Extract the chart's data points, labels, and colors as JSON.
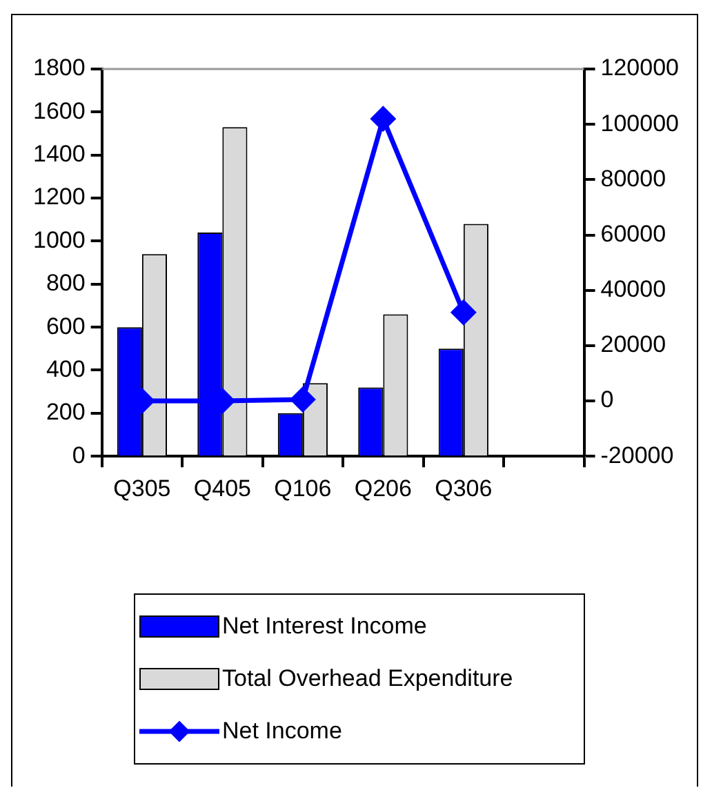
{
  "chart_data": {
    "type": "bar",
    "categories": [
      "Q305",
      "Q405",
      "Q106",
      "Q206",
      "Q306",
      null
    ],
    "series": [
      {
        "name": "Net Interest Income",
        "color": "#0000ff",
        "values": [
          600,
          1040,
          200,
          320,
          500,
          null
        ]
      },
      {
        "name": "Total Overhead Expenditure",
        "color": "#d9d9d9",
        "values": [
          940,
          1530,
          340,
          660,
          1080,
          null
        ]
      },
      {
        "name": "Net Income",
        "type": "line",
        "axis": "y2",
        "marker": "diamond",
        "color": "#0000ff",
        "values": [
          0,
          0,
          500,
          102000,
          32000,
          null
        ]
      }
    ],
    "ylim": [
      0,
      1800
    ],
    "yticks": [
      0,
      200,
      400,
      600,
      800,
      1000,
      1200,
      1400,
      1600,
      1800
    ],
    "y2lim": [
      -20000,
      120000
    ],
    "y2ticks": [
      -20000,
      0,
      20000,
      40000,
      60000,
      80000,
      100000,
      120000
    ],
    "legend": "bottom"
  }
}
